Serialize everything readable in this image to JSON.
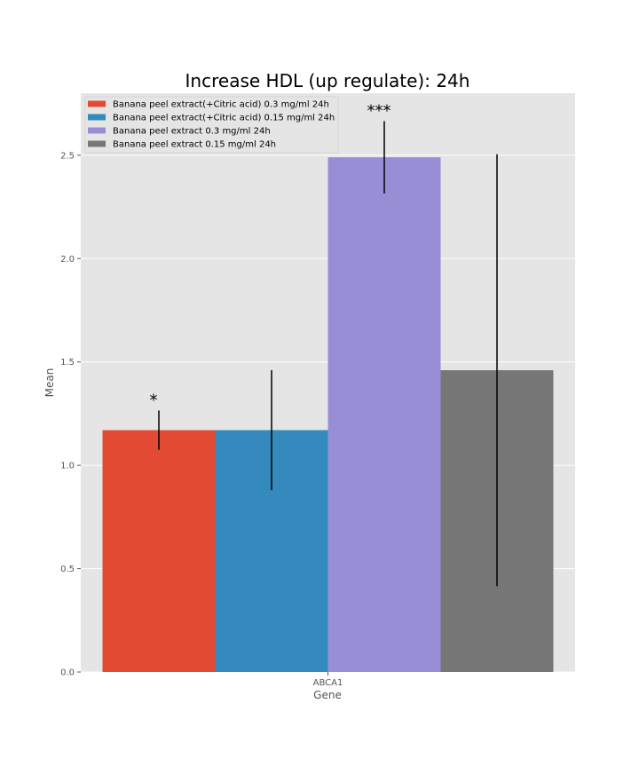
{
  "chart_data": {
    "type": "bar",
    "title": "Increase HDL (up regulate): 24h",
    "xlabel": "Gene",
    "ylabel": "Mean",
    "categories": [
      "ABCA1"
    ],
    "ylim": [
      0,
      2.8
    ],
    "yticks": [
      "0.0",
      "0.5",
      "1.0",
      "1.5",
      "2.0",
      "2.5"
    ],
    "grid": true,
    "legend_position": "top-left",
    "series": [
      {
        "name": "Banana peel extract(+Citric acid) 0.3 mg/ml 24h",
        "color": "#E24A33",
        "values": [
          1.17
        ],
        "error": [
          0.095
        ],
        "annotation": "*"
      },
      {
        "name": "Banana peel extract(+Citric acid) 0.15 mg/ml 24h",
        "color": "#348ABD",
        "values": [
          1.17
        ],
        "error": [
          0.29
        ],
        "annotation": ""
      },
      {
        "name": "Banana peel extract 0.3 mg/ml 24h",
        "color": "#988ED5",
        "values": [
          2.49
        ],
        "error": [
          0.175
        ],
        "annotation": "***"
      },
      {
        "name": "Banana peel extract 0.15 mg/ml 24h",
        "color": "#777777",
        "values": [
          1.46
        ],
        "error": [
          1.045
        ],
        "annotation": ""
      }
    ]
  }
}
